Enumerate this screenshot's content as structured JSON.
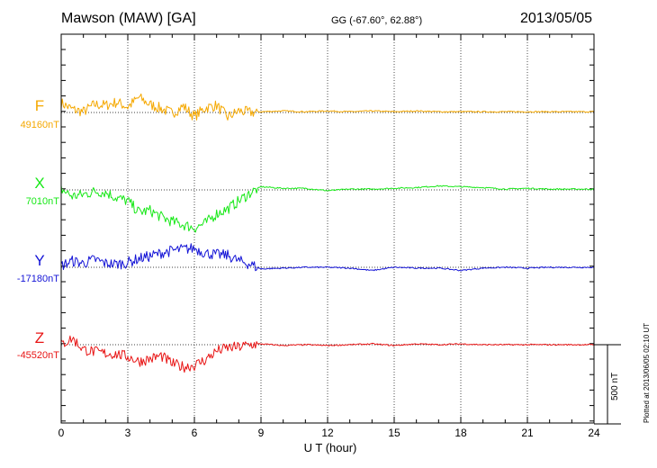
{
  "header": {
    "station": "Mawson (MAW)  [GA]",
    "coords": "GG (-67.60°,  62.88°)",
    "date": "2013/05/05"
  },
  "footer": {
    "plotted": "Plotted at 2013/06/05 02:10 UT",
    "scale_label": "500 nT"
  },
  "colors": {
    "F": "#f5a800",
    "X": "#17e817",
    "Y": "#1414d6",
    "Z": "#e81414"
  },
  "chart_data": {
    "type": "line",
    "xlabel": "U T (hour)",
    "xlim": [
      0,
      24
    ],
    "xticks": [
      0,
      3,
      6,
      9,
      12,
      15,
      18,
      21,
      24
    ],
    "xtick_labels": [
      "0",
      "3",
      "6",
      "9",
      "12",
      "15",
      "18",
      "21",
      "24"
    ],
    "grid": true,
    "scale_bar_nT": 500,
    "series": [
      {
        "name": "F",
        "baseline_label": "49160nT",
        "x": [
          0,
          0.5,
          1,
          1.5,
          2,
          2.5,
          3,
          3.5,
          4,
          4.5,
          5,
          5.5,
          6,
          6.5,
          7,
          7.5,
          8,
          8.5,
          9,
          10,
          11,
          12,
          13,
          14,
          15,
          16,
          17,
          18,
          19,
          20,
          21,
          22,
          23,
          24
        ],
        "y": [
          60,
          20,
          5,
          50,
          45,
          65,
          35,
          95,
          50,
          25,
          -5,
          40,
          -25,
          30,
          45,
          -30,
          10,
          0,
          5,
          10,
          5,
          10,
          5,
          10,
          5,
          10,
          5,
          5,
          5,
          5,
          5,
          5,
          5,
          5
        ]
      },
      {
        "name": "X",
        "baseline_label": "7010nT",
        "x": [
          0,
          0.5,
          1,
          1.5,
          2,
          2.5,
          3,
          3.5,
          4,
          4.5,
          5,
          5.5,
          6,
          6.5,
          7,
          7.5,
          8,
          8.5,
          9,
          10,
          11,
          12,
          13,
          14,
          15,
          16,
          17,
          18,
          19,
          20,
          21,
          22,
          23,
          24
        ],
        "y": [
          5,
          -40,
          -30,
          -10,
          -15,
          -50,
          -70,
          -140,
          -130,
          -170,
          -200,
          -220,
          -240,
          -210,
          -150,
          -120,
          -70,
          -20,
          20,
          10,
          10,
          -5,
          5,
          5,
          10,
          15,
          25,
          20,
          15,
          5,
          10,
          5,
          5,
          5
        ]
      },
      {
        "name": "Y",
        "baseline_label": "-17180nT",
        "x": [
          0,
          0.5,
          1,
          1.5,
          2,
          2.5,
          3,
          3.5,
          4,
          4.5,
          5,
          5.5,
          6,
          6.5,
          7,
          7.5,
          8,
          8.5,
          9,
          10,
          11,
          12,
          13,
          14,
          15,
          16,
          17,
          18,
          19,
          20,
          21,
          22,
          23,
          24
        ],
        "y": [
          10,
          40,
          25,
          50,
          25,
          20,
          30,
          55,
          70,
          90,
          105,
          115,
          120,
          90,
          80,
          75,
          40,
          20,
          -10,
          -5,
          0,
          0,
          -5,
          -20,
          0,
          -5,
          -5,
          -20,
          -5,
          0,
          -5,
          0,
          0,
          0
        ]
      },
      {
        "name": "Z",
        "baseline_label": "-45520nT",
        "x": [
          0,
          0.5,
          1,
          1.5,
          2,
          2.5,
          3,
          3.5,
          4,
          4.5,
          5,
          5.5,
          6,
          6.5,
          7,
          7.5,
          8,
          8.5,
          9,
          10,
          11,
          12,
          13,
          14,
          15,
          16,
          17,
          18,
          19,
          20,
          21,
          22,
          23,
          24
        ],
        "y": [
          0,
          40,
          -30,
          -45,
          -55,
          -60,
          -75,
          -105,
          -90,
          -70,
          -120,
          -140,
          -130,
          -95,
          -40,
          -20,
          -15,
          0,
          5,
          -5,
          0,
          -5,
          0,
          5,
          -5,
          5,
          0,
          5,
          0,
          0,
          0,
          0,
          0,
          0
        ]
      }
    ]
  }
}
